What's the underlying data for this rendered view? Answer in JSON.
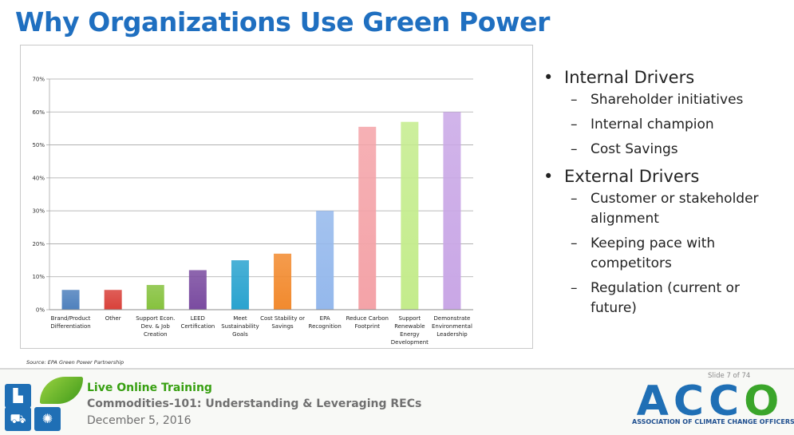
{
  "slide": {
    "title": "Why Organizations Use Green Power",
    "source": "Source: EPA Green Power Partnership",
    "slide_number": "Slide 7 of 74"
  },
  "bullets": [
    {
      "label": "Internal Drivers",
      "sub": [
        "Shareholder initiatives",
        "Internal champion",
        "Cost Savings"
      ]
    },
    {
      "label": "External Drivers",
      "sub": [
        "Customer or stakeholder alignment",
        "Keeping pace with competitors",
        "Regulation (current or future)"
      ]
    }
  ],
  "footer": {
    "line1": "Live Online Training",
    "line2": "Commodities-101: Understanding & Leveraging RECs",
    "line3": "December 5, 2016"
  },
  "logo": {
    "word_parts": [
      "A",
      "CC",
      "O"
    ],
    "subtitle": "ASSOCIATION OF CLIMATE CHANGE OFFICERS"
  },
  "chart_data": {
    "type": "bar",
    "categories": [
      [
        "Brand/Product",
        "Differentiation"
      ],
      [
        "Other"
      ],
      [
        "Support Econ.",
        "Dev. & Job",
        "Creation"
      ],
      [
        "LEED",
        "Certification"
      ],
      [
        "Meet",
        "Sustainability",
        "Goals"
      ],
      [
        "Cost Stability or",
        "Savings"
      ],
      [
        "EPA",
        "Recognition"
      ],
      [
        "Reduce Carbon",
        "Footprint"
      ],
      [
        "Support",
        "Renewable",
        "Energy",
        "Development"
      ],
      [
        "Demonstrate",
        "Environmental",
        "Leadership"
      ]
    ],
    "values": [
      6,
      6,
      7.5,
      12,
      15,
      17,
      30,
      55.5,
      57,
      60
    ],
    "colors": [
      "#4f81bd",
      "#d9413a",
      "#86c23e",
      "#7a4ba0",
      "#2aa3cf",
      "#f28a2e",
      "#94b8ec",
      "#f4a3a8",
      "#c4ec8c",
      "#c9a7e6"
    ],
    "yticks": [
      "0%",
      "10%",
      "20%",
      "30%",
      "40%",
      "50%",
      "60%",
      "70%"
    ],
    "ylim": [
      0,
      70
    ],
    "grid": true
  }
}
